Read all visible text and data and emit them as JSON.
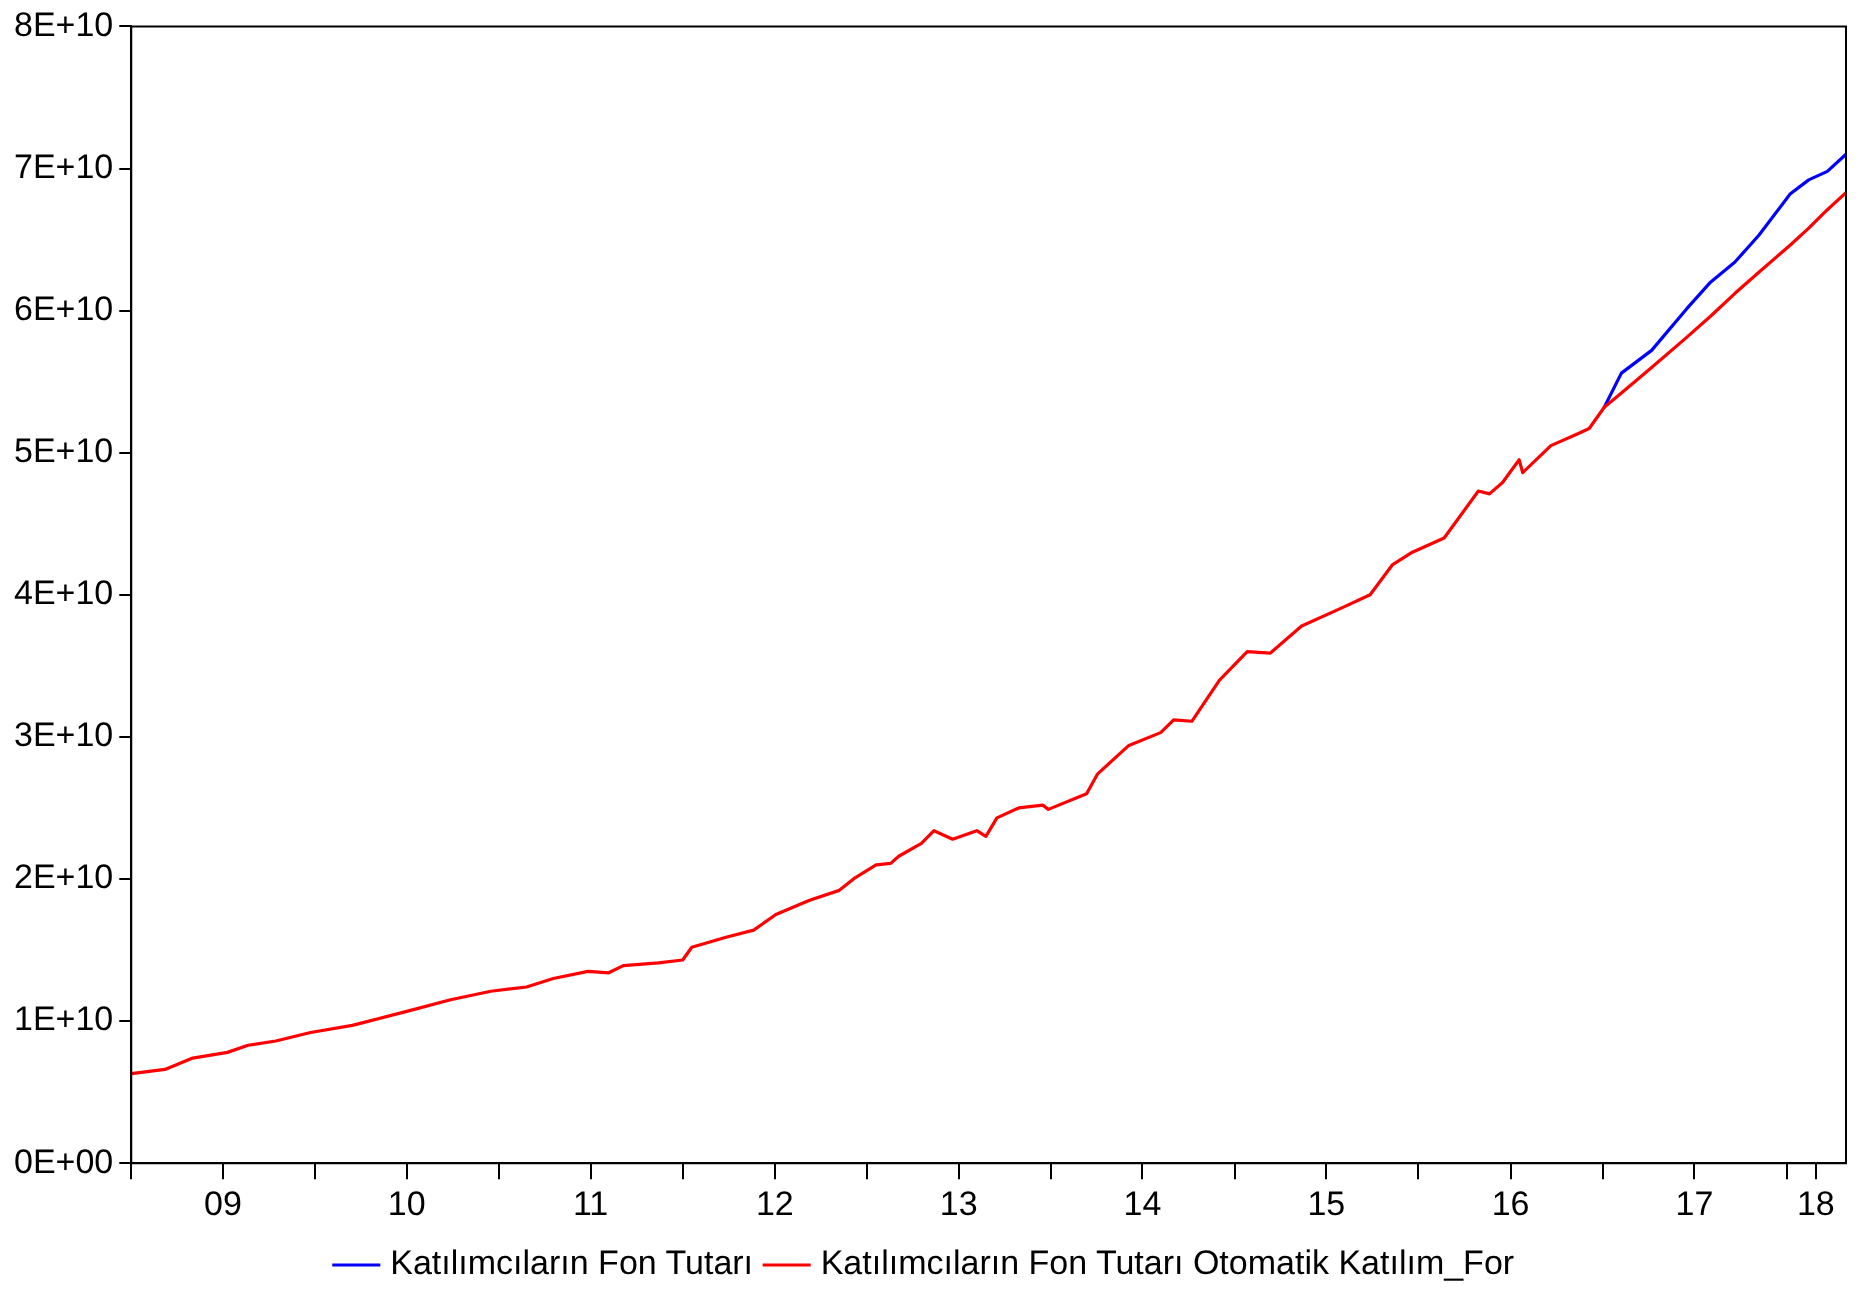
{
  "chart_data": {
    "type": "line",
    "x": [
      "2009-01-01",
      "2009-03-09",
      "2009-05-03",
      "2009-07-11",
      "2009-08-21",
      "2009-10-15",
      "2009-12-23",
      "2010-03-16",
      "2010-07-04",
      "2010-09-27",
      "2010-12-16",
      "2011-02-25",
      "2011-04-19",
      "2011-06-27",
      "2011-08-07",
      "2011-09-05",
      "2011-11-14",
      "2012-01-01",
      "2012-01-19",
      "2012-03-27",
      "2012-05-21",
      "2012-07-04",
      "2012-09-09",
      "2012-11-07",
      "2012-12-09",
      "2013-01-19",
      "2013-02-17",
      "2013-03-05",
      "2013-04-19",
      "2013-05-14",
      "2013-06-20",
      "2013-08-07",
      "2013-08-25",
      "2013-09-16",
      "2013-10-29",
      "2013-12-16",
      "2013-12-27",
      "2014-03-13",
      "2014-04-04",
      "2014-06-05",
      "2014-08-07",
      "2014-09-02",
      "2014-10-08",
      "2014-12-02",
      "2015-01-26",
      "2015-03-13",
      "2015-05-14",
      "2015-08-03",
      "2015-09-27",
      "2015-11-10",
      "2015-12-20",
      "2016-02-21",
      "2016-04-29",
      "2016-05-21",
      "2016-06-16",
      "2016-07-19",
      "2016-07-26",
      "2016-09-20",
      "2016-11-17",
      "2016-12-05",
      "2017-01-04",
      "2017-02-07",
      "2017-04-08",
      "2017-06-16",
      "2017-08-03",
      "2017-09-20",
      "2017-11-07",
      "2018-01-08",
      "2018-02-14",
      "2018-03-23",
      "2018-04-29"
    ],
    "series": [
      {
        "name": "Katılımcıların Fon Tutarı",
        "color": "#0000ff",
        "values": [
          null,
          null,
          null,
          null,
          null,
          null,
          null,
          null,
          null,
          null,
          null,
          null,
          null,
          null,
          null,
          null,
          null,
          null,
          null,
          null,
          null,
          null,
          null,
          null,
          null,
          null,
          null,
          null,
          null,
          null,
          null,
          null,
          null,
          null,
          null,
          null,
          null,
          null,
          null,
          null,
          null,
          null,
          null,
          null,
          null,
          null,
          null,
          null,
          null,
          null,
          null,
          null,
          null,
          null,
          null,
          null,
          null,
          null,
          null,
          null,
          53200000000.0,
          55600000000.0,
          57200000000.0,
          60100000000.0,
          62000000000.0,
          63400000000.0,
          65300000000.0,
          68200000000.0,
          69200000000.0,
          69800000000.0,
          71000000000.0
        ]
      },
      {
        "name": "Katılımcıların Fon Tutarı Otomatik Katılım_For",
        "color": "#ff0000",
        "values": [
          6300000000.0,
          6600000000.0,
          7400000000.0,
          7800000000.0,
          8300000000.0,
          8600000000.0,
          9200000000.0,
          9700000000.0,
          10700000000.0,
          11500000000.0,
          12100000000.0,
          12400000000.0,
          13000000000.0,
          13500000000.0,
          13400000000.0,
          13900000000.0,
          14100000000.0,
          14300000000.0,
          15200000000.0,
          15900000000.0,
          16400000000.0,
          17500000000.0,
          18500000000.0,
          19200000000.0,
          20100000000.0,
          21000000000.0,
          21100000000.0,
          21600000000.0,
          22500000000.0,
          23400000000.0,
          22800000000.0,
          23400000000.0,
          23000000000.0,
          24300000000.0,
          25000000000.0,
          25200000000.0,
          24900000000.0,
          26000000000.0,
          27400000000.0,
          29400000000.0,
          30300000000.0,
          31200000000.0,
          31100000000.0,
          34000000000.0,
          36000000000.0,
          35900000000.0,
          37800000000.0,
          39100000000.0,
          40000000000.0,
          42100000000.0,
          43000000000.0,
          44000000000.0,
          47300000000.0,
          47100000000.0,
          47900000000.0,
          49500000000.0,
          48600000000.0,
          50500000000.0,
          51400000000.0,
          51700000000.0,
          53200000000.0,
          54200000000.0,
          56000000000.0,
          58100000000.0,
          59600000000.0,
          61200000000.0,
          62700000000.0,
          64600000000.0,
          65800000000.0,
          67100000000.0,
          68300000000.0
        ]
      }
    ],
    "xlim": [
      "2009-01-01",
      "2018-04-29"
    ],
    "xticks": [
      {
        "value": "2009-01-01",
        "label": null
      },
      {
        "value": "2009-07-02",
        "label": "09"
      },
      {
        "value": "2010-01-01",
        "label": null
      },
      {
        "value": "2010-07-02",
        "label": "10"
      },
      {
        "value": "2011-01-01",
        "label": null
      },
      {
        "value": "2011-07-02",
        "label": "11"
      },
      {
        "value": "2012-01-01",
        "label": null
      },
      {
        "value": "2012-07-02",
        "label": "12"
      },
      {
        "value": "2013-01-01",
        "label": null
      },
      {
        "value": "2013-07-02",
        "label": "13"
      },
      {
        "value": "2014-01-01",
        "label": null
      },
      {
        "value": "2014-07-02",
        "label": "14"
      },
      {
        "value": "2015-01-01",
        "label": null
      },
      {
        "value": "2015-07-02",
        "label": "15"
      },
      {
        "value": "2016-01-01",
        "label": null
      },
      {
        "value": "2016-07-02",
        "label": "16"
      },
      {
        "value": "2017-01-01",
        "label": null
      },
      {
        "value": "2017-07-02",
        "label": "17"
      },
      {
        "value": "2018-01-01",
        "label": null
      },
      {
        "value": "2018-02-28",
        "label": "18"
      }
    ],
    "ylim": [
      0,
      80000000000.0
    ],
    "yticks": [
      {
        "value": 0,
        "label": "0E+00"
      },
      {
        "value": 10000000000.0,
        "label": "1E+10"
      },
      {
        "value": 20000000000.0,
        "label": "2E+10"
      },
      {
        "value": 30000000000.0,
        "label": "3E+10"
      },
      {
        "value": 40000000000.0,
        "label": "4E+10"
      },
      {
        "value": 50000000000.0,
        "label": "5E+10"
      },
      {
        "value": 60000000000.0,
        "label": "6E+10"
      },
      {
        "value": 70000000000.0,
        "label": "7E+10"
      },
      {
        "value": 80000000000.0,
        "label": "8E+10"
      }
    ],
    "grid": false,
    "legend": "bottom",
    "marker": "none",
    "line_style": "solid"
  }
}
